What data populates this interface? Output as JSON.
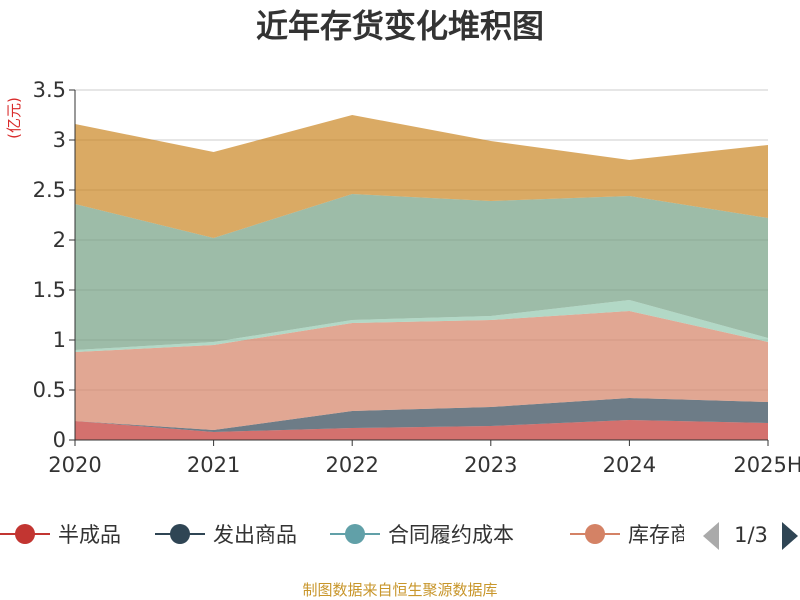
{
  "chart_data": {
    "type": "area",
    "stacked": true,
    "title": "近年存货变化堆积图",
    "ylabel": "(亿元)",
    "xlabel": "",
    "categories": [
      "2020",
      "2021",
      "2022",
      "2023",
      "2024",
      "2025H"
    ],
    "ylim": [
      0,
      3.5
    ],
    "yticks": [
      "0",
      "0.5",
      "1",
      "1.5",
      "2",
      "2.5",
      "3",
      "3.5"
    ],
    "grid": true,
    "series": [
      {
        "name": "半成品",
        "values": [
          0.19,
          0.08,
          0.12,
          0.14,
          0.2,
          0.17
        ],
        "color": "#c23531"
      },
      {
        "name": "发出商品",
        "values": [
          0.0,
          0.02,
          0.17,
          0.19,
          0.22,
          0.21
        ],
        "color": "#2f4554"
      },
      {
        "name": "合同履约成本",
        "values": [
          0.0,
          0.0,
          0.0,
          0.0,
          0.0,
          0.0
        ],
        "color": "#61a0a8"
      },
      {
        "name": "库存商品",
        "values": [
          0.69,
          0.85,
          0.88,
          0.87,
          0.87,
          0.6
        ],
        "color": "#d48265"
      },
      {
        "name": "",
        "values": [
          0.02,
          0.03,
          0.03,
          0.04,
          0.11,
          0.04
        ],
        "color": "#91c7ae"
      },
      {
        "name": "",
        "values": [
          1.46,
          1.04,
          1.26,
          1.15,
          1.04,
          1.2
        ],
        "color": "#749f83"
      },
      {
        "name": "",
        "values": [
          0.8,
          0.86,
          0.79,
          0.6,
          0.36,
          0.73
        ],
        "color": "#ca8622"
      }
    ],
    "legend": {
      "position": "bottom",
      "visible_items": [
        "半成品",
        "发出商品",
        "合同履约成本",
        "库存商"
      ],
      "page": "1/3"
    }
  },
  "footer": {
    "source": "制图数据来自恒生聚源数据库"
  }
}
